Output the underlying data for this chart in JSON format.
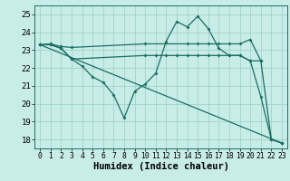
{
  "background_color": "#c8ece6",
  "grid_color": "#a0d4cc",
  "line_color": "#1a6e64",
  "xlabel": "Humidex (Indice chaleur)",
  "xlabel_fontsize": 7.5,
  "ylim": [
    17.5,
    25.5
  ],
  "xlim": [
    -0.5,
    23.5
  ],
  "yticks": [
    18,
    19,
    20,
    21,
    22,
    23,
    24,
    25
  ],
  "xticks": [
    0,
    1,
    2,
    3,
    4,
    5,
    6,
    7,
    8,
    9,
    10,
    11,
    12,
    13,
    14,
    15,
    16,
    17,
    18,
    19,
    20,
    21,
    22,
    23
  ],
  "lines": [
    {
      "x": [
        0,
        1,
        2,
        3,
        10,
        14,
        15,
        16,
        17,
        18,
        19,
        20,
        21
      ],
      "y": [
        23.3,
        23.35,
        23.2,
        23.15,
        23.35,
        23.35,
        23.35,
        23.35,
        23.35,
        23.35,
        23.35,
        23.6,
        22.4
      ]
    },
    {
      "x": [
        0,
        1,
        2,
        3,
        4,
        5,
        6,
        7,
        8,
        9,
        10,
        11,
        12,
        13,
        14,
        15,
        16,
        17,
        18,
        19,
        20,
        21,
        22,
        23
      ],
      "y": [
        23.3,
        23.3,
        23.1,
        22.5,
        22.1,
        21.5,
        21.2,
        20.5,
        19.2,
        20.7,
        21.1,
        21.7,
        23.5,
        24.6,
        24.3,
        24.9,
        24.2,
        23.1,
        22.7,
        22.7,
        22.4,
        20.4,
        18.0,
        17.8
      ]
    },
    {
      "x": [
        0,
        1,
        2,
        3,
        10,
        11,
        12,
        13,
        14,
        15,
        16,
        17,
        18,
        19,
        20,
        21,
        22,
        23
      ],
      "y": [
        23.3,
        23.3,
        23.1,
        22.5,
        22.7,
        22.7,
        22.7,
        22.7,
        22.7,
        22.7,
        22.7,
        22.7,
        22.7,
        22.7,
        22.4,
        22.4,
        18.0,
        17.8
      ]
    },
    {
      "x": [
        0,
        23
      ],
      "y": [
        23.3,
        17.8
      ]
    }
  ]
}
